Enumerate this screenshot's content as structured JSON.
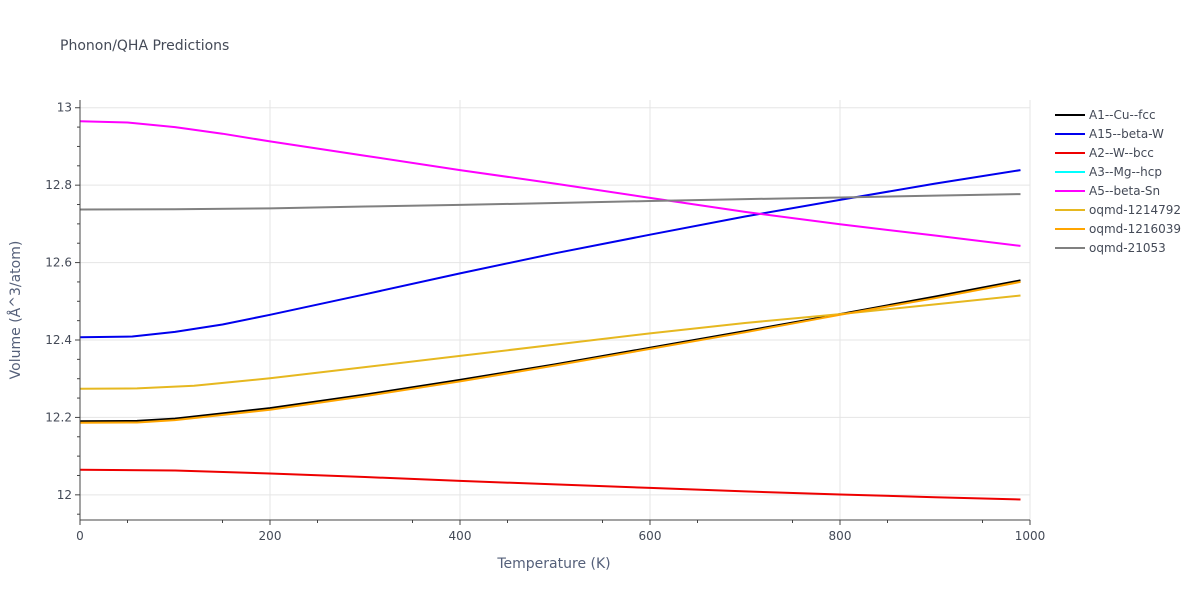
{
  "chart_data": {
    "type": "line",
    "title": "Phonon/QHA Predictions",
    "xlabel": "Temperature (K)",
    "ylabel": "Volume (Å^3/atom)",
    "xlim": [
      0,
      1000
    ],
    "ylim": [
      11.935,
      13.02
    ],
    "x_ticks": [
      0,
      200,
      400,
      600,
      800,
      1000
    ],
    "x_tick_labels": [
      "0",
      "200",
      "400",
      "600",
      "800",
      "1000"
    ],
    "y_ticks": [
      12.0,
      12.2,
      12.4,
      12.6,
      12.8,
      13.0
    ],
    "y_tick_labels": [
      "12",
      "12.2",
      "12.4",
      "12.6",
      "12.8",
      "13"
    ],
    "grid": true,
    "legend_position": "top-right",
    "series": [
      {
        "name": "A1--Cu--fcc",
        "color": "#000000",
        "x": [
          0,
          60,
          100,
          200,
          300,
          400,
          500,
          600,
          700,
          800,
          900,
          990
        ],
        "y": [
          12.19,
          12.191,
          12.197,
          12.224,
          12.259,
          12.297,
          12.337,
          12.38,
          12.423,
          12.467,
          12.512,
          12.554
        ]
      },
      {
        "name": "A15--beta-W",
        "color": "#0000ee",
        "x": [
          0,
          55,
          100,
          150,
          200,
          300,
          400,
          500,
          600,
          700,
          800,
          900,
          990
        ],
        "y": [
          12.407,
          12.409,
          12.421,
          12.44,
          12.465,
          12.518,
          12.572,
          12.624,
          12.672,
          12.719,
          12.762,
          12.804,
          12.839
        ]
      },
      {
        "name": "A2--W--bcc",
        "color": "#ee0000",
        "x": [
          0,
          100,
          200,
          300,
          400,
          500,
          600,
          700,
          800,
          900,
          990
        ],
        "y": [
          12.065,
          12.063,
          12.055,
          12.046,
          12.036,
          12.027,
          12.018,
          12.009,
          12.001,
          11.994,
          11.988
        ]
      },
      {
        "name": "A3--Mg--hcp",
        "color": "#00ffff",
        "x": [],
        "y": []
      },
      {
        "name": "A5--beta-Sn",
        "color": "#ff00ff",
        "x": [
          0,
          50,
          100,
          150,
          200,
          300,
          400,
          500,
          600,
          700,
          800,
          900,
          990
        ],
        "y": [
          12.965,
          12.962,
          12.95,
          12.933,
          12.913,
          12.876,
          12.839,
          12.804,
          12.767,
          12.731,
          12.699,
          12.67,
          12.643
        ]
      },
      {
        "name": "oqmd-1214792",
        "color": "#e6b820",
        "x": [
          0,
          60,
          120,
          200,
          300,
          400,
          500,
          600,
          700,
          800,
          900,
          990
        ],
        "y": [
          12.274,
          12.275,
          12.282,
          12.301,
          12.33,
          12.359,
          12.388,
          12.417,
          12.444,
          12.467,
          12.492,
          12.515
        ]
      },
      {
        "name": "oqmd-1216039",
        "color": "#ffa500",
        "x": [
          0,
          60,
          100,
          200,
          300,
          400,
          500,
          600,
          700,
          800,
          900,
          990
        ],
        "y": [
          12.186,
          12.187,
          12.193,
          12.22,
          12.255,
          12.293,
          12.334,
          12.377,
          12.42,
          12.465,
          12.508,
          12.55
        ]
      },
      {
        "name": "oqmd-21053",
        "color": "#808080",
        "x": [
          0,
          100,
          200,
          300,
          400,
          500,
          600,
          700,
          800,
          900,
          990
        ],
        "y": [
          12.737,
          12.738,
          12.74,
          12.745,
          12.749,
          12.754,
          12.759,
          12.764,
          12.768,
          12.773,
          12.777
        ]
      }
    ]
  }
}
